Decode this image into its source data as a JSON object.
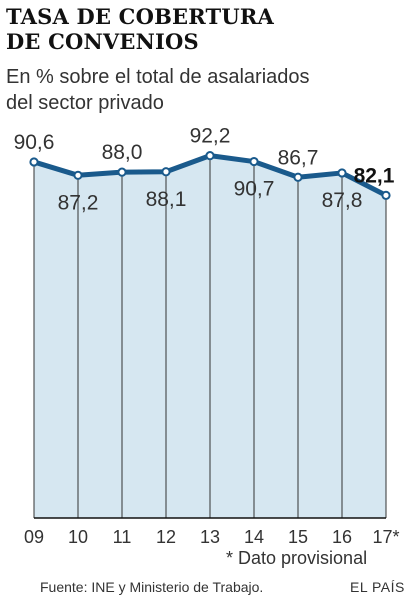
{
  "header": {
    "title_line1": "TASA DE COBERTURA",
    "title_line2": "DE CONVENIOS",
    "subtitle_line1": "En % sobre el total de asalariados",
    "subtitle_line2": "del sector privado"
  },
  "footer": {
    "note": "* Dato provisional",
    "source": "Fuente: INE y Ministerio de Trabajo.",
    "brand": "EL PAÍS"
  },
  "colors": {
    "line": "#1a5a8c",
    "area_fill": "#d6e7f1",
    "grid": "#333333"
  },
  "chart_data": {
    "type": "area",
    "categories": [
      "09",
      "10",
      "11",
      "12",
      "13",
      "14",
      "15",
      "16",
      "17*"
    ],
    "values": [
      90.6,
      87.2,
      88.0,
      88.1,
      92.2,
      90.7,
      86.7,
      87.8,
      82.1
    ],
    "value_labels": [
      "90,6",
      "87,2",
      "88,0",
      "88,1",
      "92,2",
      "90,7",
      "86,7",
      "87,8",
      "82,1"
    ],
    "label_positions": [
      "above",
      "below",
      "above",
      "below",
      "above",
      "below",
      "above",
      "below",
      "above"
    ],
    "highlight_index": 8,
    "ylim": [
      0,
      95
    ],
    "grid": "vertical",
    "legend": "none"
  }
}
